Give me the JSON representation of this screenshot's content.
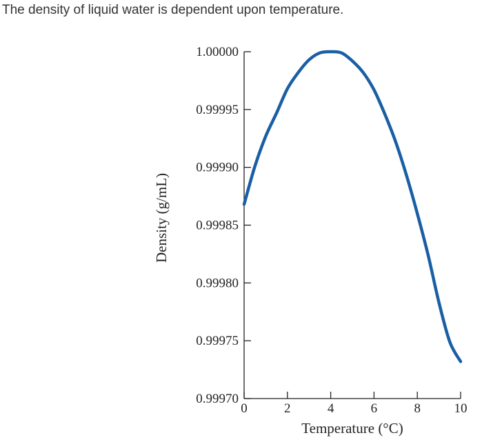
{
  "intro_text": "The density of liquid water is dependent upon temperature.",
  "colors": {
    "curve": "#1a5fa4",
    "axis": "#231f20",
    "text": "#333333"
  },
  "chart_data": {
    "type": "line",
    "xlabel": "Temperature (°C)",
    "ylabel": "Density (g/mL)",
    "xlim": [
      0,
      10
    ],
    "ylim": [
      0.9997,
      1.0
    ],
    "x_ticks": [
      0,
      2,
      4,
      6,
      8,
      10
    ],
    "y_ticks": [
      0.9997,
      0.99975,
      0.9998,
      0.99985,
      0.9999,
      0.99995,
      1.0
    ],
    "x_tick_labels": [
      "0",
      "2",
      "4",
      "6",
      "8",
      "10"
    ],
    "y_tick_labels": [
      "0.99970",
      "0.99975",
      "0.99980",
      "0.99985",
      "0.99990",
      "0.99995",
      "1.00000"
    ],
    "grid": false,
    "series": [
      {
        "x": [
          0,
          0.5,
          1,
          1.5,
          2,
          2.5,
          3,
          3.5,
          4,
          4.5,
          5,
          5.5,
          6,
          6.5,
          7,
          7.5,
          8,
          8.5,
          9,
          9.5,
          10
        ],
        "values": [
          0.999868,
          0.999901,
          0.999927,
          0.999947,
          0.999968,
          0.999982,
          0.999993,
          0.999999,
          1.0,
          0.999999,
          0.999992,
          0.999982,
          0.999967,
          0.999946,
          0.999922,
          0.999893,
          0.99986,
          0.999824,
          0.999783,
          0.999749,
          0.999732
        ]
      }
    ]
  }
}
